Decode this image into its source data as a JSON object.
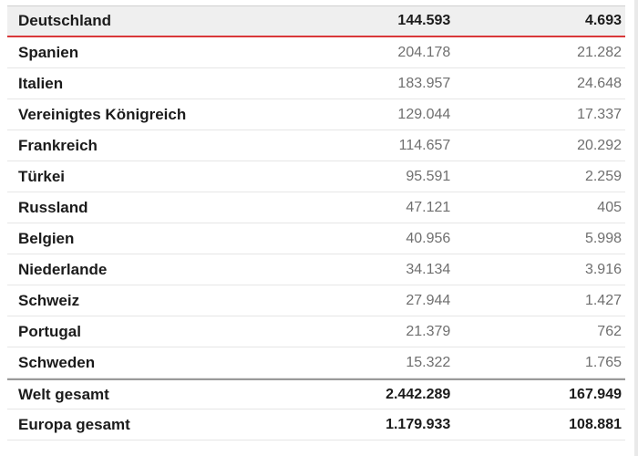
{
  "table": {
    "highlight_row": {
      "name": "Deutschland",
      "a": "144.593",
      "b": "4.693"
    },
    "rows": [
      {
        "name": "Spanien",
        "a": "204.178",
        "b": "21.282"
      },
      {
        "name": "Italien",
        "a": "183.957",
        "b": "24.648"
      },
      {
        "name": "Vereinigtes Königreich",
        "a": "129.044",
        "b": "17.337"
      },
      {
        "name": "Frankreich",
        "a": "114.657",
        "b": "20.292"
      },
      {
        "name": "Türkei",
        "a": "95.591",
        "b": "2.259"
      },
      {
        "name": "Russland",
        "a": "47.121",
        "b": "405"
      },
      {
        "name": "Belgien",
        "a": "40.956",
        "b": "5.998"
      },
      {
        "name": "Niederlande",
        "a": "34.134",
        "b": "3.916"
      },
      {
        "name": "Schweiz",
        "a": "27.944",
        "b": "1.427"
      },
      {
        "name": "Portugal",
        "a": "21.379",
        "b": "762"
      },
      {
        "name": "Schweden",
        "a": "15.322",
        "b": "1.765"
      }
    ],
    "totals": [
      {
        "name": "Welt gesamt",
        "a": "2.442.289",
        "b": "167.949"
      },
      {
        "name": "Europa gesamt",
        "a": "1.179.933",
        "b": "108.881"
      }
    ]
  },
  "colors": {
    "highlight_background": "#efefef",
    "highlight_border": "#d9383a",
    "value_text": "#6f6f6f",
    "label_text": "#1b1b1b"
  }
}
